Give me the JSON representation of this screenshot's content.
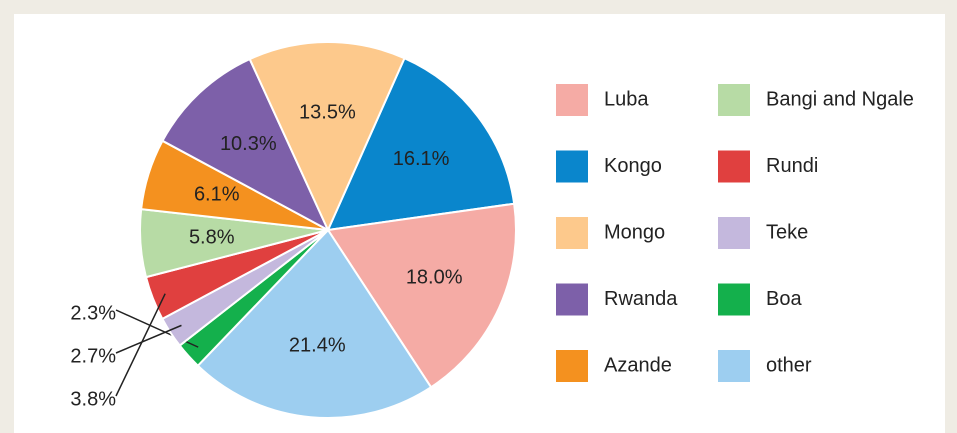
{
  "chart_data": {
    "type": "pie",
    "categories": [
      "Luba",
      "Kongo",
      "Mongo",
      "Rwanda",
      "Azande",
      "Bangi and Ngale",
      "Rundi",
      "Teke",
      "Boa",
      "other"
    ],
    "values": [
      18.0,
      16.1,
      13.5,
      10.3,
      6.1,
      5.8,
      3.8,
      2.7,
      2.3,
      21.4
    ],
    "value_labels": [
      "18.0%",
      "16.1%",
      "13.5%",
      "10.3%",
      "6.1%",
      "5.8%",
      "3.8%",
      "2.7%",
      "2.3%",
      "21.4%"
    ],
    "colors": [
      "#f5aba5",
      "#0a86cc",
      "#fdc98c",
      "#7d60a9",
      "#f4911f",
      "#b7dba5",
      "#e0403f",
      "#c4b8dd",
      "#14b04c",
      "#9dcef0"
    ]
  }
}
